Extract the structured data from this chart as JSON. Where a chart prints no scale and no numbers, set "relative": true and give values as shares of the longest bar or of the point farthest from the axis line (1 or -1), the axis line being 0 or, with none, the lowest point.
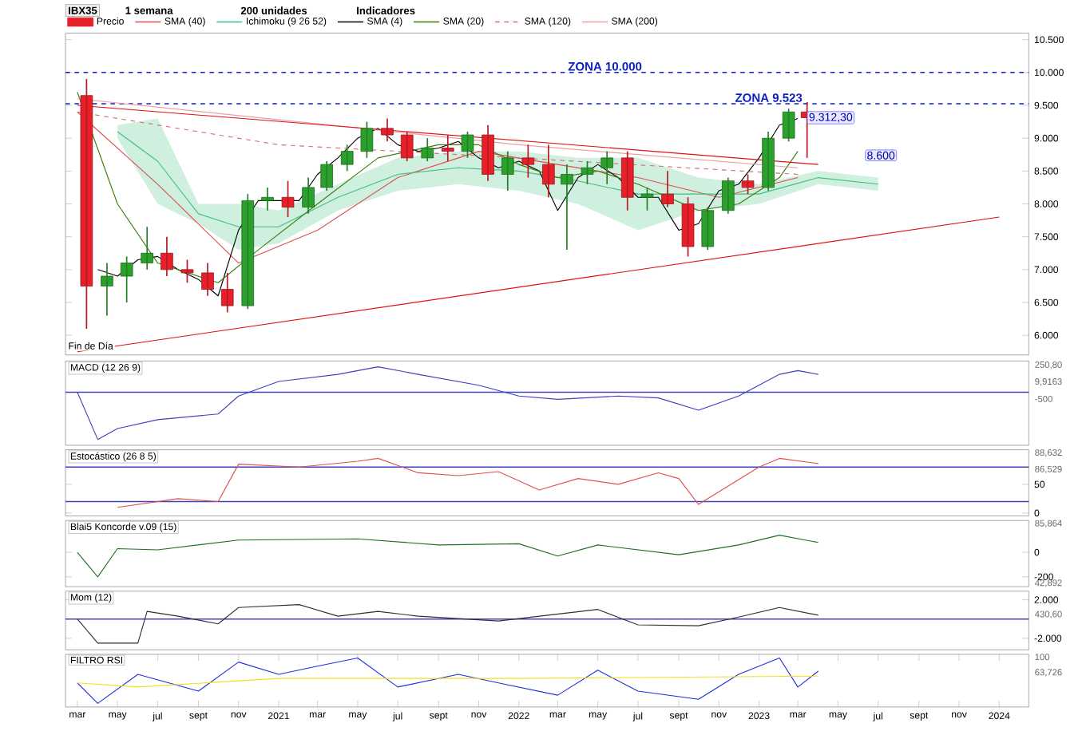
{
  "chart_data": [
    {
      "type": "candlestick",
      "title": "IBX35",
      "legend": "top left",
      "tick_labels": "y",
      "annotations": [
        "1 semana",
        "200 unidades",
        "Indicadores",
        "Fin de Día",
        {
          "text": "9.312,30",
          "x": "2023-03-15",
          "y": 9312
        },
        "8.600"
      ],
      "xlim": [
        "2020-02-12",
        "2024-02-15"
      ],
      "ylim": [
        5700,
        10600
      ],
      "yticks": [
        {
          "value": 6000,
          "label": "6.000"
        },
        {
          "value": 6500,
          "label": "6.500"
        },
        {
          "value": 7000,
          "label": "7.000"
        },
        {
          "value": 7500,
          "label": "7.500"
        },
        {
          "value": 8000,
          "label": "8.000"
        },
        {
          "value": 8500,
          "label": "8.500"
        },
        {
          "value": 9000,
          "label": "9.000"
        },
        {
          "value": 9500,
          "label": "9.500"
        },
        {
          "value": 10000,
          "label": "10.000"
        },
        {
          "value": 10500,
          "label": "10.500"
        }
      ],
      "ref_lines": [
        {
          "axis": "y",
          "value": 10000,
          "label": "ZONA 10.000",
          "color": "#1020c0",
          "line_style": "dashed"
        },
        {
          "axis": "y",
          "value": 9523,
          "label": "ZONA 9.523",
          "color": "#1020c0",
          "line_style": "dashed"
        }
      ],
      "series": [
        {
          "name": "Precio",
          "type": "candlestick",
          "x": [
            "2020-03-15",
            "2020-04-15",
            "2020-05-15",
            "2020-06-15",
            "2020-07-15",
            "2020-08-15",
            "2020-09-15",
            "2020-10-15",
            "2020-11-15",
            "2020-12-15",
            "2021-01-15",
            "2021-02-15",
            "2021-03-15",
            "2021-04-15",
            "2021-05-15",
            "2021-06-15",
            "2021-07-15",
            "2021-08-15",
            "2021-09-15",
            "2021-10-15",
            "2021-11-15",
            "2021-12-15",
            "2022-01-15",
            "2022-02-15",
            "2022-03-15",
            "2022-04-15",
            "2022-05-15",
            "2022-06-15",
            "2022-07-15",
            "2022-08-15",
            "2022-09-15",
            "2022-10-15",
            "2022-11-15",
            "2022-12-15",
            "2023-01-15",
            "2023-02-15",
            "2023-03-15"
          ],
          "ohlc": [
            [
              9650,
              9900,
              6100,
              6750
            ],
            [
              6750,
              7100,
              6300,
              6900
            ],
            [
              6900,
              7200,
              6500,
              7100
            ],
            [
              7100,
              7650,
              7000,
              7250
            ],
            [
              7250,
              7500,
              6900,
              7000
            ],
            [
              7000,
              7150,
              6800,
              6950
            ],
            [
              6950,
              7100,
              6600,
              6700
            ],
            [
              6700,
              6950,
              6350,
              6450
            ],
            [
              6450,
              8150,
              6400,
              8050
            ],
            [
              8050,
              8250,
              7900,
              8100
            ],
            [
              8100,
              8350,
              7800,
              7950
            ],
            [
              7950,
              8400,
              7850,
              8250
            ],
            [
              8250,
              8650,
              8200,
              8600
            ],
            [
              8600,
              8900,
              8500,
              8800
            ],
            [
              8800,
              9250,
              8700,
              9150
            ],
            [
              9150,
              9300,
              8950,
              9050
            ],
            [
              9050,
              9100,
              8650,
              8700
            ],
            [
              8700,
              9000,
              8650,
              8850
            ],
            [
              8850,
              9050,
              8650,
              8800
            ],
            [
              8800,
              9100,
              8700,
              9050
            ],
            [
              9050,
              9200,
              8350,
              8450
            ],
            [
              8450,
              8800,
              8200,
              8700
            ],
            [
              8700,
              8900,
              8400,
              8600
            ],
            [
              8600,
              8900,
              8100,
              8300
            ],
            [
              8300,
              8600,
              7300,
              8450
            ],
            [
              8450,
              8650,
              8300,
              8550
            ],
            [
              8550,
              8800,
              8300,
              8700
            ],
            [
              8700,
              8800,
              7900,
              8100
            ],
            [
              8100,
              8250,
              7900,
              8150
            ],
            [
              8150,
              8500,
              7950,
              8000
            ],
            [
              8000,
              8100,
              7200,
              7350
            ],
            [
              7350,
              7950,
              7300,
              7900
            ],
            [
              7900,
              8400,
              7850,
              8350
            ],
            [
              8350,
              8450,
              8150,
              8250
            ],
            [
              8250,
              9100,
              8200,
              9000
            ],
            [
              9000,
              9450,
              8950,
              9400
            ],
            [
              9400,
              9550,
              8700,
              9312
            ]
          ],
          "colors": [
            "#e8202a",
            "#2ca02c",
            "#2ca02c",
            "#2ca02c",
            "#e8202a",
            "#e8202a",
            "#e8202a",
            "#e8202a",
            "#2ca02c",
            "#2ca02c",
            "#e8202a",
            "#2ca02c",
            "#2ca02c",
            "#2ca02c",
            "#2ca02c",
            "#e8202a",
            "#e8202a",
            "#2ca02c",
            "#e8202a",
            "#2ca02c",
            "#e8202a",
            "#2ca02c",
            "#e8202a",
            "#e8202a",
            "#2ca02c",
            "#2ca02c",
            "#2ca02c",
            "#e8202a",
            "#2ca02c",
            "#e8202a",
            "#e8202a",
            "#2ca02c",
            "#2ca02c",
            "#e8202a",
            "#2ca02c",
            "#2ca02c",
            "#e8202a"
          ]
        },
        {
          "name": "SMA (40)",
          "type": "line",
          "color": "#e05050",
          "x": [
            "2020-03",
            "2020-07",
            "2020-11",
            "2021-03",
            "2021-07",
            "2021-11",
            "2022-03",
            "2022-07",
            "2022-11",
            "2023-03"
          ],
          "values": [
            9400,
            8300,
            7100,
            7600,
            8400,
            8800,
            8600,
            8400,
            8100,
            8400
          ]
        },
        {
          "name": "Ichimoku (9 26 52)",
          "type": "line",
          "color": "#40c080",
          "x": [
            "2020-05",
            "2020-07",
            "2020-09",
            "2020-11",
            "2021-01",
            "2021-04",
            "2021-07",
            "2021-10",
            "2022-01",
            "2022-04",
            "2022-07",
            "2022-10",
            "2023-01",
            "2023-04",
            "2023-07"
          ],
          "values": [
            9100,
            8650,
            7850,
            7650,
            7650,
            8100,
            8450,
            8550,
            8500,
            8350,
            8150,
            8150,
            8150,
            8400,
            8300
          ],
          "upper": [
            9200,
            9300,
            8000,
            8000,
            7900,
            8300,
            8700,
            8800,
            8800,
            8700,
            8700,
            8400,
            8300,
            8500,
            8400
          ],
          "lower": [
            9000,
            8000,
            7700,
            7300,
            7400,
            7900,
            8200,
            8300,
            8200,
            8000,
            7600,
            7900,
            8000,
            8300,
            8200
          ]
        },
        {
          "name": "SMA (4)",
          "type": "line",
          "color": "#000000",
          "x": [
            "2020-04",
            "2020-05",
            "2020-06",
            "2020-07",
            "2020-08",
            "2020-09",
            "2020-10",
            "2020-11",
            "2020-12",
            "2021-01",
            "2021-02",
            "2021-03",
            "2021-04",
            "2021-05",
            "2021-06",
            "2021-07",
            "2021-08",
            "2021-09",
            "2021-10",
            "2021-11",
            "2021-12",
            "2022-01",
            "2022-02",
            "2022-03",
            "2022-04",
            "2022-05",
            "2022-06",
            "2022-07",
            "2022-08",
            "2022-09",
            "2022-10",
            "2022-11",
            "2022-12",
            "2023-01",
            "2023-02",
            "2023-03"
          ],
          "values": [
            7000,
            6900,
            7150,
            7200,
            7000,
            6850,
            6600,
            7600,
            8050,
            8050,
            8050,
            8450,
            8700,
            9000,
            9150,
            8900,
            8800,
            8850,
            8950,
            8700,
            8550,
            8650,
            8500,
            7900,
            8400,
            8600,
            8400,
            8100,
            8100,
            7600,
            7700,
            8200,
            8300,
            8700,
            9200,
            9300
          ]
        },
        {
          "name": "SMA (20)",
          "type": "line",
          "color": "#3a7d0a",
          "x": [
            "2020-03",
            "2020-05",
            "2020-07",
            "2020-10",
            "2020-12",
            "2021-03",
            "2021-06",
            "2021-09",
            "2021-11",
            "2022-01",
            "2022-03",
            "2022-05",
            "2022-07",
            "2022-10",
            "2022-12",
            "2023-02",
            "2023-03"
          ],
          "values": [
            9700,
            8000,
            7100,
            6800,
            7300,
            8000,
            8700,
            8900,
            8900,
            8600,
            8400,
            8500,
            8300,
            7900,
            8000,
            8400,
            8800
          ]
        },
        {
          "name": "SMA (120)",
          "type": "line",
          "color": "#d07070",
          "line_style": "dashed",
          "x": [
            "2020-03",
            "2021-01",
            "2022-01",
            "2023-03"
          ],
          "values": [
            9400,
            8900,
            8700,
            8450
          ]
        },
        {
          "name": "SMA (200)",
          "type": "line",
          "color": "#e8a0a0",
          "x": [
            "2020-03",
            "2022-01",
            "2023-03"
          ],
          "values": [
            9600,
            8900,
            8550
          ]
        },
        {
          "type": "line",
          "color": "#e01010",
          "x": [
            "2020-03-01",
            "2024-01-01"
          ],
          "values": [
            5750,
            7800
          ]
        },
        {
          "type": "line",
          "color": "#e01010",
          "x": [
            "2020-03-01",
            "2023-04-01"
          ],
          "values": [
            9500,
            8600
          ]
        }
      ]
    },
    {
      "type": "line",
      "title": "MACD (12 26 9)",
      "relative": true,
      "tick_labels": "y",
      "xlim": [
        "2020-02-12",
        "2024-02-15"
      ],
      "annotations": [
        "250,80",
        "9,9163",
        "-500"
      ],
      "ref_lines": [
        {
          "axis": "y",
          "value": 0,
          "color": "#4040c0"
        }
      ],
      "series": [
        {
          "color": "#4040c0",
          "x": [
            "2020-03",
            "2020-04",
            "2020-05",
            "2020-07",
            "2020-10",
            "2020-11",
            "2021-01",
            "2021-04",
            "2021-06",
            "2021-08",
            "2021-11",
            "2022-01",
            "2022-03",
            "2022-06",
            "2022-08",
            "2022-10",
            "2022-12",
            "2023-02",
            "2023-03",
            "2023-04"
          ],
          "values": [
            0,
            -1,
            -0.77,
            -0.58,
            -0.46,
            -0.08,
            0.23,
            0.38,
            0.54,
            0.38,
            0.15,
            -0.08,
            -0.15,
            -0.08,
            -0.12,
            -0.38,
            -0.08,
            0.38,
            0.46,
            0.38
          ]
        }
      ]
    },
    {
      "type": "line",
      "title": "Estocástico (26 8 5)",
      "tick_labels": "y",
      "xlim": [
        "2020-02-12",
        "2024-02-15"
      ],
      "ylim": [
        -5,
        110
      ],
      "yticks": [
        0,
        50
      ],
      "annotations": [
        "88,632",
        "86,529"
      ],
      "ref_lines": [
        {
          "axis": "y",
          "value": 80,
          "color": "#4040c0"
        },
        {
          "axis": "y",
          "value": 20,
          "color": "#4040c0"
        }
      ],
      "series": [
        {
          "color": "#e05050",
          "x": [
            "2020-05",
            "2020-08",
            "2020-10",
            "2020-11",
            "2021-02",
            "2021-05",
            "2021-06",
            "2021-08",
            "2021-10",
            "2021-12",
            "2022-02",
            "2022-04",
            "2022-06",
            "2022-08",
            "2022-09",
            "2022-10",
            "2023-01",
            "2023-02",
            "2023-04"
          ],
          "values": [
            10,
            25,
            20,
            85,
            80,
            90,
            95,
            70,
            65,
            72,
            40,
            60,
            50,
            70,
            60,
            15,
            80,
            95,
            86
          ]
        }
      ]
    },
    {
      "type": "line",
      "title": "Blai5 Koncorde v.09 (15)",
      "tick_labels": "y",
      "xlim": [
        "2020-02-12",
        "2024-02-15"
      ],
      "ylim": [
        -280,
        260
      ],
      "yticks": [
        0,
        -200
      ],
      "annotations": [
        "85,864",
        "42,892"
      ],
      "series": [
        {
          "color": "#207020",
          "x": [
            "2020-03",
            "2020-04",
            "2020-05",
            "2020-07",
            "2020-11",
            "2021-05",
            "2021-09",
            "2022-01",
            "2022-03",
            "2022-05",
            "2022-09",
            "2022-12",
            "2023-02",
            "2023-04"
          ],
          "values": [
            0,
            -200,
            30,
            20,
            100,
            110,
            60,
            70,
            -30,
            60,
            -20,
            60,
            140,
            80
          ]
        }
      ]
    },
    {
      "type": "line",
      "title": "Mom (12)",
      "tick_labels": "y",
      "xlim": [
        "2020-02-12",
        "2024-02-15"
      ],
      "ylim": [
        -3200,
        2900
      ],
      "yticks": [
        {
          "value": 2000,
          "label": "2.000"
        },
        {
          "value": -2000,
          "label": "-2.000"
        }
      ],
      "annotations": [
        "430,60"
      ],
      "ref_lines": [
        {
          "axis": "y",
          "value": 0,
          "color": "#4040c0"
        }
      ],
      "series": [
        {
          "color": "#303030",
          "x": [
            "2020-03",
            "2020-04",
            "2020-06",
            "2020-06-15",
            "2020-08",
            "2020-10",
            "2020-11",
            "2021-02",
            "2021-04",
            "2021-06",
            "2021-08",
            "2021-12",
            "2022-05",
            "2022-07",
            "2022-10",
            "2022-12",
            "2023-02",
            "2023-04"
          ],
          "values": [
            0,
            -2500,
            -2500,
            800,
            300,
            -500,
            1200,
            1500,
            300,
            800,
            300,
            -200,
            1000,
            -600,
            -700,
            200,
            1200,
            400
          ]
        }
      ]
    },
    {
      "type": "line",
      "title": "FILTRO RSI",
      "relative": true,
      "xlim": [
        "2020-02-12",
        "2024-02-15"
      ],
      "annotations": [
        "100",
        "63,726"
      ],
      "xticks": [
        {
          "value": "2020-03",
          "label": "mar"
        },
        {
          "value": "2020-05",
          "label": "may"
        },
        {
          "value": "2020-07",
          "label": "jul"
        },
        {
          "value": "2020-09",
          "label": "sept"
        },
        {
          "value": "2020-11",
          "label": "nov"
        },
        {
          "value": "2021-01",
          "label": "2021"
        },
        {
          "value": "2021-03",
          "label": "mar"
        },
        {
          "value": "2021-05",
          "label": "may"
        },
        {
          "value": "2021-07",
          "label": "jul"
        },
        {
          "value": "2021-09",
          "label": "sept"
        },
        {
          "value": "2021-11",
          "label": "nov"
        },
        {
          "value": "2022-01",
          "label": "2022"
        },
        {
          "value": "2022-03",
          "label": "mar"
        },
        {
          "value": "2022-05",
          "label": "may"
        },
        {
          "value": "2022-07",
          "label": "jul"
        },
        {
          "value": "2022-09",
          "label": "sept"
        },
        {
          "value": "2022-11",
          "label": "nov"
        },
        {
          "value": "2023-01",
          "label": "2023"
        },
        {
          "value": "2023-03",
          "label": "mar"
        },
        {
          "value": "2023-05",
          "label": "may"
        },
        {
          "value": "2023-07",
          "label": "jul"
        },
        {
          "value": "2023-09",
          "label": "sept"
        },
        {
          "value": "2023-11",
          "label": "nov"
        },
        {
          "value": "2024-01",
          "label": "2024"
        }
      ],
      "series": [
        {
          "color": "#2030e0",
          "x": [
            "2020-03",
            "2020-04",
            "2020-06",
            "2020-09",
            "2020-11",
            "2021-01",
            "2021-03",
            "2021-05",
            "2021-07",
            "2021-10",
            "2021-12",
            "2022-03",
            "2022-05",
            "2022-07",
            "2022-10",
            "2022-12",
            "2023-02",
            "2023-03",
            "2023-04"
          ],
          "values": [
            0.45,
            0,
            0.64,
            0.27,
            0.91,
            0.64,
            0.82,
            1,
            0.36,
            0.64,
            0.45,
            0.18,
            0.73,
            0.27,
            0.09,
            0.64,
            1,
            0.36,
            0.71
          ]
        },
        {
          "color": "#f0e020",
          "x": [
            "2020-03",
            "2020-06",
            "2021-01",
            "2022-01",
            "2023-04"
          ],
          "values": [
            0.45,
            0.36,
            0.55,
            0.55,
            0.6
          ]
        }
      ]
    }
  ]
}
